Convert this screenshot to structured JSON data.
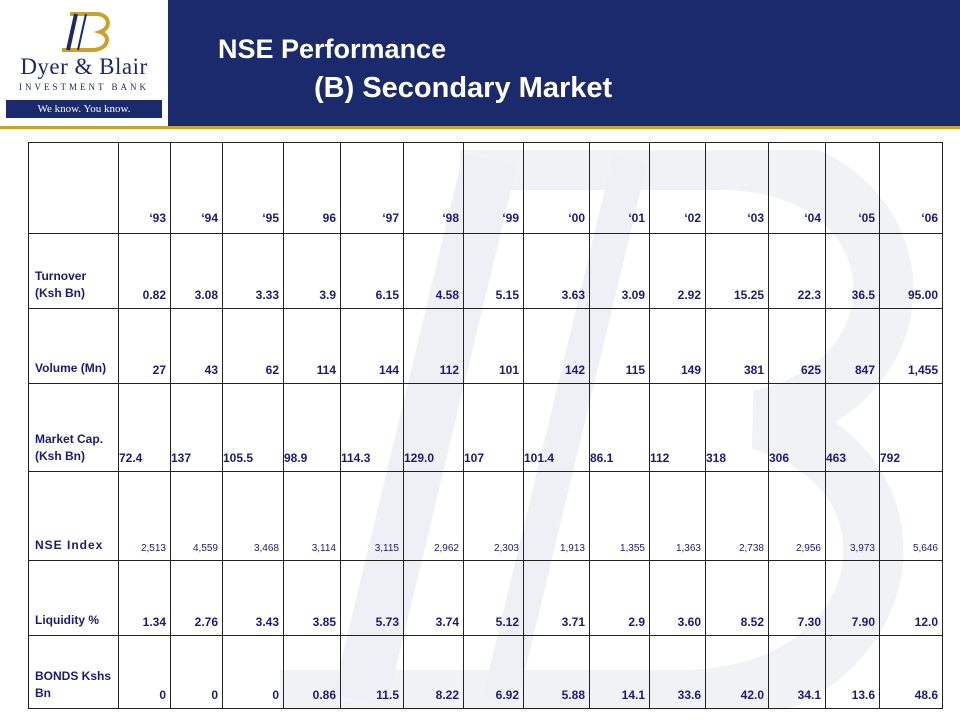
{
  "logo": {
    "name": "Dyer & Blair",
    "subtitle": "INVESTMENT BANK",
    "tagline": "We know. You know."
  },
  "title": {
    "line1": "NSE Performance",
    "line2": "(B) Secondary  Market"
  },
  "table": {
    "years": [
      "‘93",
      "‘94",
      "‘95",
      "96",
      "‘97",
      "‘98",
      "‘99",
      "‘00",
      "‘01",
      "‘02",
      "‘03",
      "‘04",
      "‘05",
      "‘06"
    ],
    "rows": [
      {
        "label": "Turnover (Ksh Bn)",
        "values": [
          "0.82",
          "3.08",
          "3.33",
          "3.9",
          "6.15",
          "4.58",
          "5.15",
          "3.63",
          "3.09",
          "2.92",
          "15.25",
          "22.3",
          "36.5",
          "95.00"
        ]
      },
      {
        "label": "Volume (Mn)",
        "values": [
          "27",
          "43",
          "62",
          "114",
          "144",
          "112",
          "101",
          "142",
          "115",
          "149",
          "381",
          "625",
          "847",
          "1,455"
        ]
      },
      {
        "label": "Market Cap. (Ksh Bn)",
        "values": [
          "72.4",
          "137",
          "105.5",
          "98.9",
          "114.3",
          "129.0",
          "107",
          "101.4",
          "86.1",
          "112",
          "318",
          "306",
          "463",
          "792"
        ]
      },
      {
        "label": "NSE Index",
        "values": [
          "2,513",
          "4,559",
          "3,468",
          "3,114",
          "3,115",
          "2,962",
          "2,303",
          "1,913",
          "1,355",
          "1,363",
          "2,738",
          "2,956",
          "3,973",
          "5,646"
        ]
      },
      {
        "label": "Liquidity %",
        "values": [
          "1.34",
          "2.76",
          "3.43",
          "3.85",
          "5.73",
          "3.74",
          "5.12",
          "3.71",
          "2.9",
          "3.60",
          "8.52",
          "7.30",
          "7.90",
          "12.0"
        ]
      },
      {
        "label": "BONDS Kshs Bn",
        "values": [
          "0",
          "0",
          "0",
          "0.86",
          "11.5",
          "8.22",
          "6.92",
          "5.88",
          "14.1",
          "33.6",
          "42.0",
          "34.1",
          "13.6",
          "48.6"
        ]
      }
    ]
  }
}
